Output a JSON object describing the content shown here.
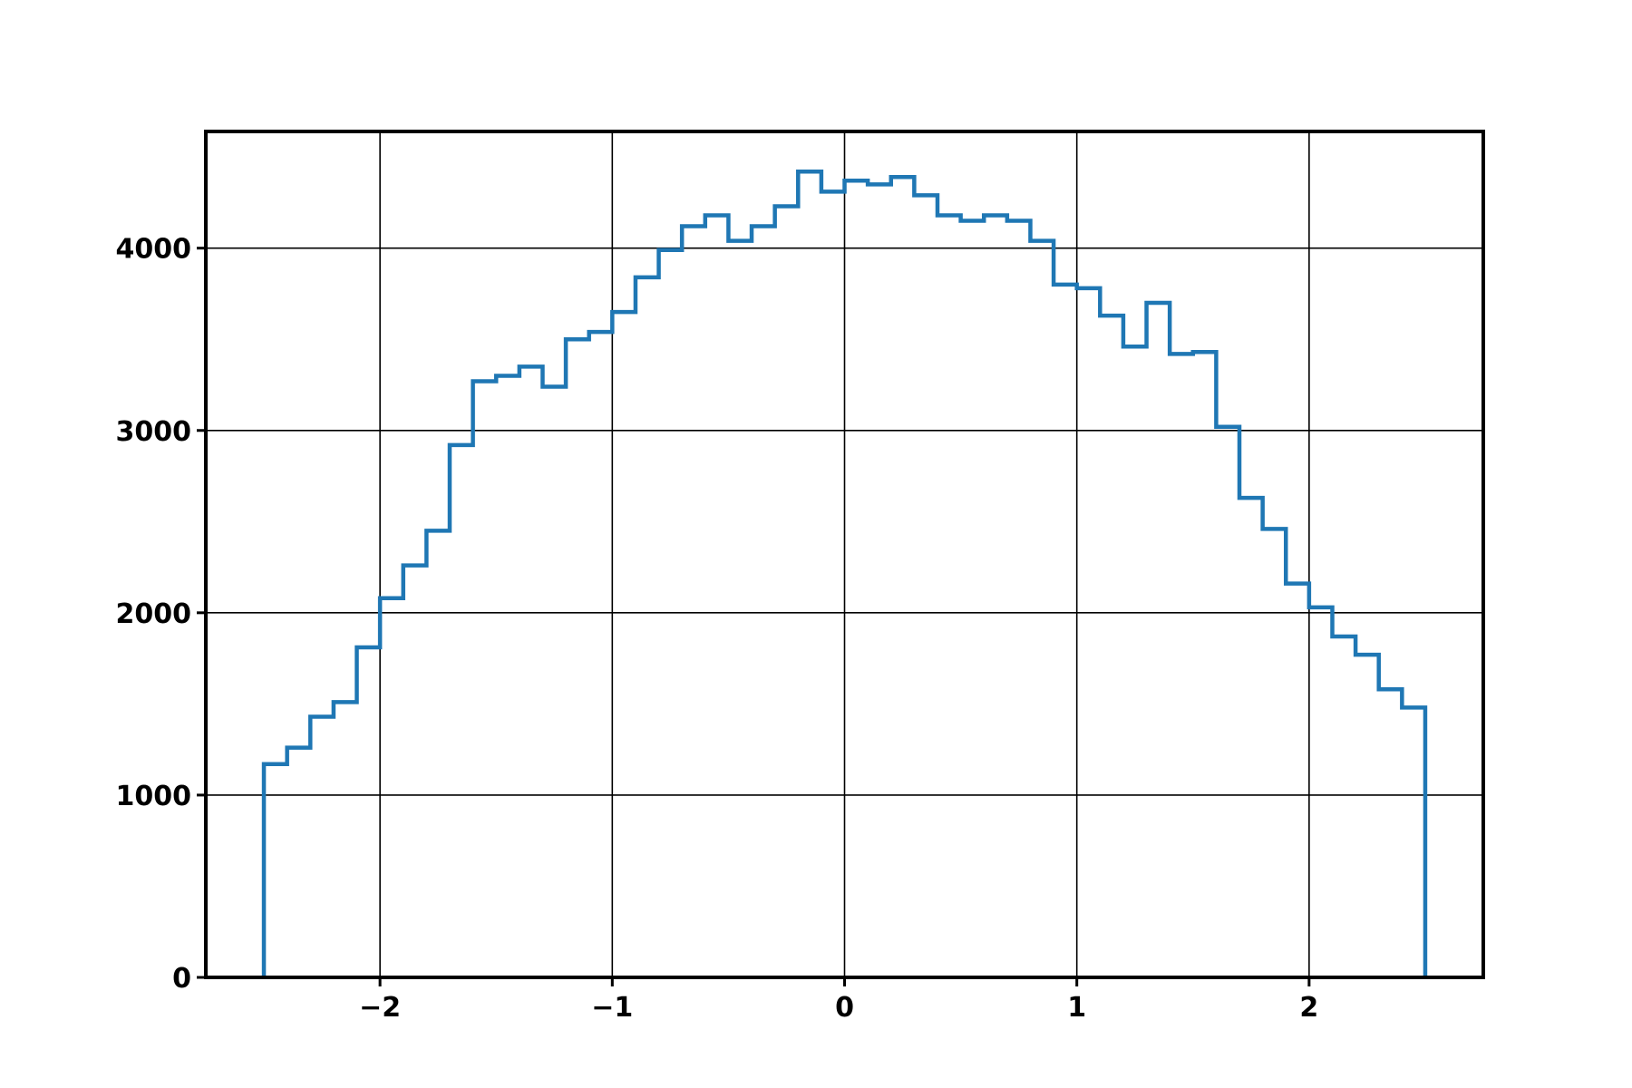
{
  "chart_data": {
    "type": "histogram",
    "title": "",
    "xlabel": "",
    "ylabel": "",
    "xlim": [
      -2.75,
      2.75
    ],
    "ylim": [
      0,
      4640
    ],
    "grid": true,
    "x_ticks": [
      -2,
      -1,
      0,
      1,
      2
    ],
    "x_tick_labels": [
      "−2",
      "−1",
      "0",
      "1",
      "2"
    ],
    "y_ticks": [
      0,
      1000,
      2000,
      3000,
      4000
    ],
    "y_tick_labels": [
      "0",
      "1000",
      "2000",
      "3000",
      "4000"
    ],
    "bin_edges": [
      -2.5,
      -2.4,
      -2.3,
      -2.2,
      -2.1,
      -2.0,
      -1.9,
      -1.8,
      -1.7,
      -1.6,
      -1.5,
      -1.4,
      -1.3,
      -1.2,
      -1.1,
      -1.0,
      -0.9,
      -0.8,
      -0.7,
      -0.6,
      -0.5,
      -0.4,
      -0.3,
      -0.2,
      -0.1,
      0.0,
      0.1,
      0.2,
      0.3,
      0.4,
      0.5,
      0.6,
      0.7,
      0.8,
      0.9,
      1.0,
      1.1,
      1.2,
      1.3,
      1.4,
      1.5,
      1.6,
      1.7,
      1.8,
      1.9,
      2.0,
      2.1,
      2.2,
      2.3,
      2.4,
      2.5
    ],
    "counts": [
      1170,
      1260,
      1430,
      1510,
      1810,
      2080,
      2260,
      2450,
      2920,
      3270,
      3300,
      3350,
      3240,
      3500,
      3540,
      3650,
      3840,
      3990,
      4120,
      4180,
      4040,
      4120,
      4230,
      4420,
      4310,
      4370,
      4350,
      4390,
      4290,
      4180,
      4150,
      4180,
      4150,
      4040,
      3800,
      3780,
      3630,
      3460,
      3700,
      3420,
      3430,
      3020,
      2630,
      2460,
      2160,
      2030,
      1870,
      1770,
      1580,
      1480
    ],
    "histtype": "step",
    "line_color": "#1f77b4"
  }
}
